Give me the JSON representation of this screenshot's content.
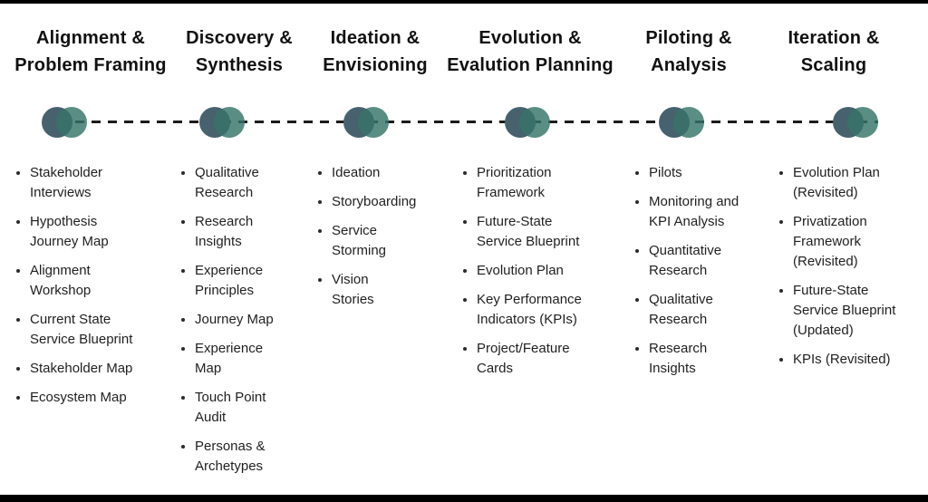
{
  "diagram": {
    "phases": [
      {
        "title": "Alignment &\nProblem Framing",
        "items": [
          "Stakeholder\nInterviews",
          "Hypothesis\nJourney Map",
          "Alignment\nWorkshop",
          "Current State\nService Blueprint",
          "Stakeholder Map",
          "Ecosystem Map"
        ]
      },
      {
        "title": "Discovery &\nSynthesis",
        "items": [
          "Qualitative\nResearch",
          "Research\nInsights",
          "Experience\nPrinciples",
          "Journey Map",
          "Experience\nMap",
          "Touch Point\nAudit",
          "Personas &\nArchetypes"
        ]
      },
      {
        "title": "Ideation &\nEnvisioning",
        "items": [
          "Ideation",
          "Storyboarding",
          "Service\nStorming",
          "Vision\nStories"
        ]
      },
      {
        "title": "Evolution &\nEvalution Planning",
        "items": [
          "Prioritization\nFramework",
          "Future-State\nService Blueprint",
          "Evolution Plan",
          "Key Performance\nIndicators (KPIs)",
          "Project/Feature\nCards"
        ]
      },
      {
        "title": "Piloting &\nAnalysis",
        "items": [
          "Pilots",
          "Monitoring and\nKPI Analysis",
          "Quantitative\nResearch",
          "Qualitative\nResearch",
          "Research\nInsights"
        ]
      },
      {
        "title": "Iteration &\nScaling",
        "items": [
          "Evolution Plan\n(Revisited)",
          "Privatization\nFramework\n(Revisited)",
          "Future-State\nService Blueprint\n(Updated)",
          "KPIs (Revisited)"
        ]
      }
    ],
    "colors": {
      "circle_left": "#47626f",
      "circle_right": "rgba(54,116,105,0.82)",
      "timeline_dash": "#1b1b1b",
      "frame_bar": "#000000",
      "text": "#1f1f1f"
    }
  }
}
